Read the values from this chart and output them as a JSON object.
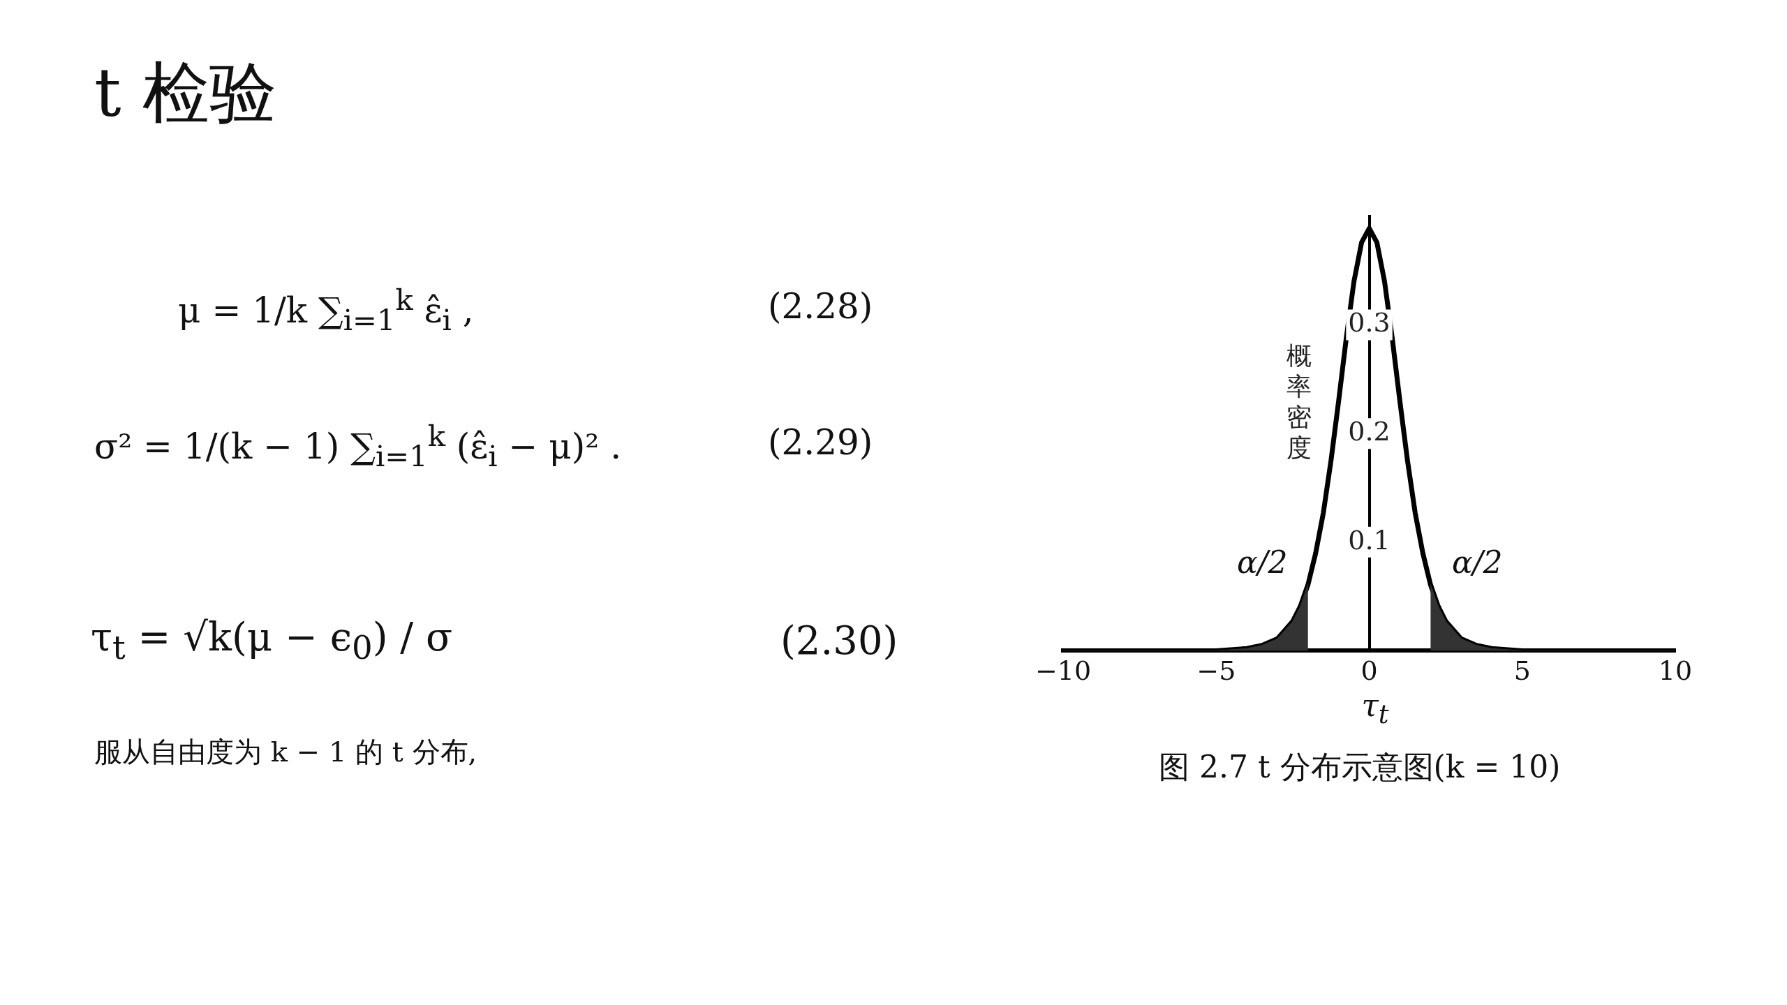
{
  "chart_data": {
    "type": "line",
    "title": "t 检验",
    "xlabel": "τ$_{t}$",
    "ylabel": "概率密度",
    "xlim": [
      -10,
      10
    ],
    "xticks": [
      {
        "value": -10,
        "label": "−10"
      },
      {
        "value": -5,
        "label": "−5"
      },
      0,
      5,
      10
    ],
    "ylim": [
      0,
      0.4
    ],
    "yticks": [
      0.1,
      0.2,
      0.3
    ],
    "grid": false,
    "legend": false,
    "marker": "none",
    "line_style": "solid",
    "series": [
      {
        "type": "area",
        "color": "#333333",
        "x": [
          -10,
          -6,
          -5,
          -4,
          -3.5,
          -3,
          -2.5,
          -2.25,
          -2
        ],
        "values": [
          0,
          0,
          0,
          0.002,
          0.005,
          0.011,
          0.027,
          0.041,
          0.061
        ]
      },
      {
        "type": "area",
        "color": "#333333",
        "x": [
          2,
          2.25,
          2.5,
          3,
          3.5,
          4,
          5,
          6,
          10
        ],
        "values": [
          0.061,
          0.041,
          0.027,
          0.011,
          0.005,
          0.002,
          0,
          0,
          0
        ]
      },
      {
        "type": "line",
        "color": "#000000",
        "x": [
          -10,
          -6,
          -5,
          -4,
          -3.5,
          -3,
          -2.5,
          -2.25,
          -2,
          -1.75,
          -1.5,
          -1.25,
          -1,
          -0.75,
          -0.5,
          -0.25,
          0,
          0.25,
          0.5,
          0.75,
          1,
          1.25,
          1.5,
          1.75,
          2,
          2.25,
          2.5,
          3,
          3.5,
          4,
          5,
          6,
          10
        ],
        "values": [
          0,
          0,
          0,
          0.002,
          0.005,
          0.011,
          0.027,
          0.041,
          0.061,
          0.09,
          0.127,
          0.175,
          0.23,
          0.288,
          0.34,
          0.376,
          0.389,
          0.376,
          0.34,
          0.288,
          0.23,
          0.175,
          0.127,
          0.09,
          0.061,
          0.041,
          0.027,
          0.011,
          0.005,
          0.002,
          0,
          0,
          0
        ]
      }
    ],
    "annotations": [
      "图 2.7  t 分布示意图(k = 10)",
      "μ = 1/k ∑$_{i=1}$$^{k}$ ε̂$_{i}$ ,",
      "(2.28)",
      "σ² = 1/(k − 1) ∑$_{i=1}$$^{k}$ (ε̂$_{i}$ − μ)² .",
      "(2.29)",
      "τ$_{t}$ = √k(μ − ϵ$_{0}$) / σ",
      "(2.30)",
      "服从自由度为 k − 1 的 t 分布,",
      "α/2",
      "α/2"
    ]
  }
}
